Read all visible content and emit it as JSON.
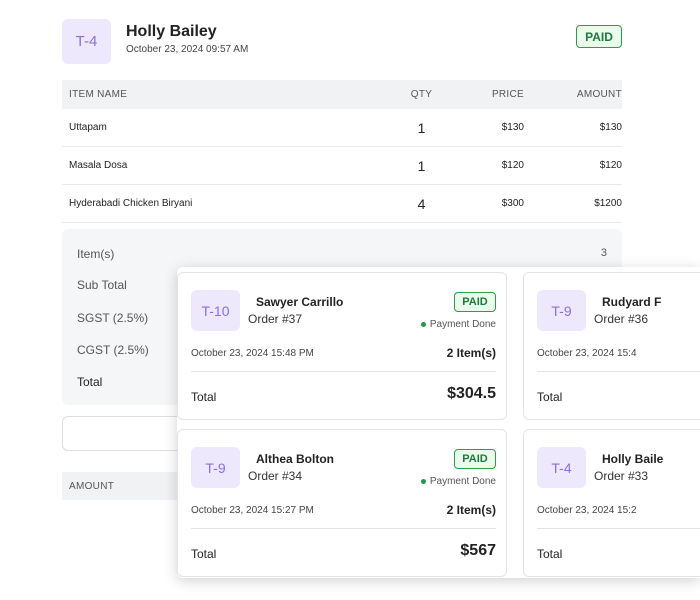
{
  "order": {
    "table_code": "T-4",
    "customer": "Holly Bailey",
    "datetime": "October 23, 2024 09:57 AM",
    "status": "PAID"
  },
  "items_table": {
    "headers": {
      "name": "ITEM NAME",
      "qty": "QTY",
      "price": "PRICE",
      "amount": "AMOUNT"
    },
    "rows": [
      {
        "name": "Uttapam",
        "qty": "1",
        "price": "$130",
        "amount": "$130"
      },
      {
        "name": "Masala Dosa",
        "qty": "1",
        "price": "$120",
        "amount": "$120"
      },
      {
        "name": "Hyderabadi Chicken Biryani",
        "qty": "4",
        "price": "$300",
        "amount": "$1200"
      }
    ]
  },
  "summary": {
    "items_label": "Item(s)",
    "items_value": "3",
    "subtotal_label": "Sub Total",
    "sgst_label": "SGST (2.5%)",
    "cgst_label": "CGST (2.5%)",
    "total_label": "Total"
  },
  "lower": {
    "amount_header": "AMOUNT"
  },
  "cards": [
    {
      "table_code": "T-10",
      "customer": "Sawyer Carrillo",
      "order": "Order #37",
      "status": "PAID",
      "payment": "Payment Done",
      "datetime": "October 23, 2024 15:48 PM",
      "items": "2 Item(s)",
      "total_label": "Total",
      "total": "$304.5"
    },
    {
      "table_code": "T-9",
      "customer": "Rudyard F",
      "order": "Order #36",
      "datetime": "October 23, 2024 15:4",
      "total_label": "Total"
    },
    {
      "table_code": "T-9",
      "customer": "Althea Bolton",
      "order": "Order #34",
      "status": "PAID",
      "payment": "Payment Done",
      "datetime": "October 23, 2024 15:27 PM",
      "items": "2 Item(s)",
      "total_label": "Total",
      "total": "$567"
    },
    {
      "table_code": "T-4",
      "customer": "Holly Baile",
      "order": "Order #33",
      "datetime": "October 23, 2024 15:2",
      "total_label": "Total"
    }
  ]
}
